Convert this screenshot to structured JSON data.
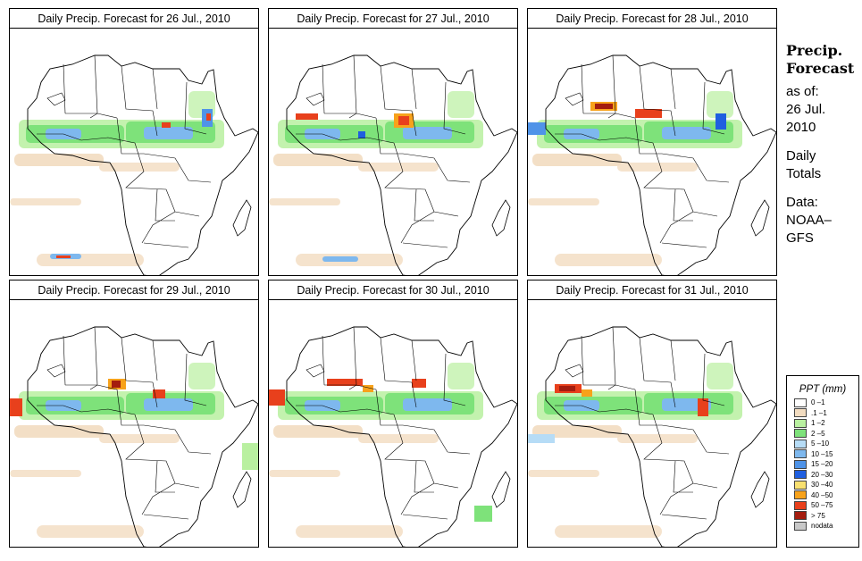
{
  "panels": [
    {
      "title": "Daily Precip. Forecast for  26 Jul., 2010"
    },
    {
      "title": "Daily Precip. Forecast for  27 Jul., 2010"
    },
    {
      "title": "Daily Precip. Forecast for  28 Jul., 2010"
    },
    {
      "title": "Daily Precip. Forecast for  29 Jul., 2010"
    },
    {
      "title": "Daily Precip. Forecast for  30 Jul., 2010"
    },
    {
      "title": "Daily Precip. Forecast for  31 Jul., 2010"
    }
  ],
  "sidebar": {
    "heading1": "Precip.",
    "heading2": "Forecast",
    "asof": "as of:",
    "date1": "26 Jul.",
    "date2": "2010",
    "daily": "Daily",
    "totals": "Totals",
    "data_label": "Data:",
    "source1": "NOAA–",
    "source2": "GFS"
  },
  "legend": {
    "title": "PPT (mm)",
    "items": [
      {
        "label": "0 –1",
        "color": "#ffffff"
      },
      {
        "label": ".1 –1",
        "color": "#f2dcc0"
      },
      {
        "label": "1 –2",
        "color": "#b9f0a0"
      },
      {
        "label": "2 –5",
        "color": "#7ee27a"
      },
      {
        "label": "5 –10",
        "color": "#b6dcf6"
      },
      {
        "label": "10 –15",
        "color": "#7eb8ee"
      },
      {
        "label": "15 –20",
        "color": "#4f93e8"
      },
      {
        "label": "20 –30",
        "color": "#1f5fe0"
      },
      {
        "label": "30 –40",
        "color": "#f8e070"
      },
      {
        "label": "40 –50",
        "color": "#f7a21b"
      },
      {
        "label": "50 –75",
        "color": "#e8401c"
      },
      {
        "label": "> 75",
        "color": "#a41d0f"
      },
      {
        "label": "nodata",
        "color": "#c8c8c8"
      }
    ]
  }
}
